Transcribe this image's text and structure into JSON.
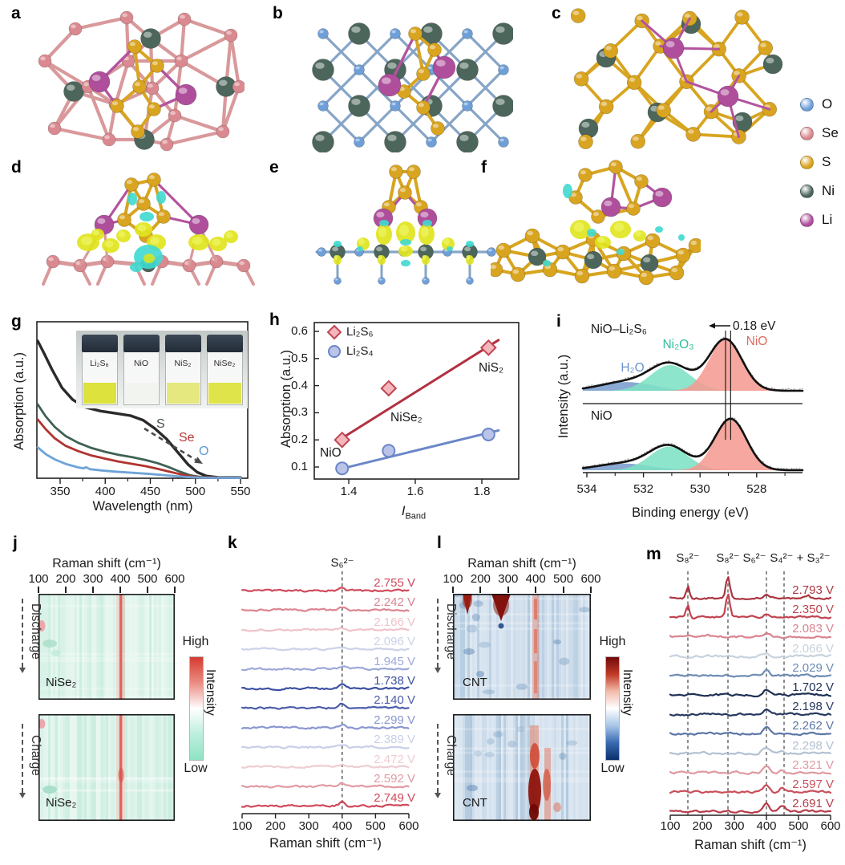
{
  "palette": {
    "O": "#6f9fd8",
    "Se": "#d9898f",
    "S": "#d9a41f",
    "Ni": "#4d665c",
    "Li": "#af4f9c",
    "charge_positive": "#dfe41c",
    "charge_negative": "#3ed9d0",
    "bond_se": "#d9999b",
    "bond_gold": "#d8a520",
    "bond_li": "#b3549f",
    "bond_nio": "#86a5c6"
  },
  "atom_legend": {
    "items": [
      {
        "label": "O",
        "color": "#6f9fd8"
      },
      {
        "label": "Se",
        "color": "#d9898f"
      },
      {
        "label": "S",
        "color": "#d9a41f"
      },
      {
        "label": "Ni",
        "color": "#4d665c"
      },
      {
        "label": "Li",
        "color": "#af4f9c"
      }
    ]
  },
  "panel_letters": {
    "a": "a",
    "b": "b",
    "c": "c",
    "d": "d",
    "e": "e",
    "f": "f",
    "g": "g",
    "h": "h",
    "i": "i",
    "j": "j",
    "k": "k",
    "l": "l",
    "m": "m"
  },
  "chart_data": {
    "g": {
      "type": "line",
      "xlabel": "Wavelength (nm)",
      "ylabel": "Absorption (a.u.)",
      "xticks": [
        "350",
        "400",
        "450",
        "500",
        "550"
      ],
      "xlim": [
        322,
        552
      ],
      "inset_vials": [
        {
          "label": "Li₂S₆",
          "liquid_color": "#dde23c"
        },
        {
          "label": "NiO",
          "liquid_color": "#f2f4f0"
        },
        {
          "label": "NiS₂",
          "liquid_color": "#e4e87e"
        },
        {
          "label": "NiSe₂",
          "liquid_color": "#dfe44a"
        }
      ],
      "trend_labels": [
        {
          "text": "S",
          "color": "#44544e"
        },
        {
          "text": "Se",
          "color": "#b9382f"
        },
        {
          "text": "O",
          "color": "#5f9bd0"
        }
      ],
      "series": [
        {
          "name": "Li₂S₆",
          "color": "#2a2a2a",
          "points": [
            [
              325,
              0.91
            ],
            [
              332,
              0.83
            ],
            [
              341,
              0.72
            ],
            [
              352,
              0.6
            ],
            [
              364,
              0.52
            ],
            [
              378,
              0.47
            ],
            [
              395,
              0.445
            ],
            [
              412,
              0.43
            ],
            [
              428,
              0.415
            ],
            [
              442,
              0.385
            ],
            [
              455,
              0.33
            ],
            [
              468,
              0.26
            ],
            [
              480,
              0.175
            ],
            [
              492,
              0.09
            ],
            [
              502,
              0.04
            ],
            [
              512,
              0.015
            ],
            [
              525,
              0.006
            ],
            [
              550,
              0.004
            ]
          ]
        },
        {
          "name": "NiS₂",
          "color": "#3e6253",
          "points": [
            [
              325,
              0.49
            ],
            [
              334,
              0.41
            ],
            [
              344,
              0.34
            ],
            [
              356,
              0.28
            ],
            [
              370,
              0.235
            ],
            [
              385,
              0.2
            ],
            [
              400,
              0.175
            ],
            [
              415,
              0.155
            ],
            [
              430,
              0.14
            ],
            [
              445,
              0.12
            ],
            [
              458,
              0.1
            ],
            [
              470,
              0.075
            ],
            [
              482,
              0.045
            ],
            [
              494,
              0.02
            ],
            [
              506,
              0.008
            ],
            [
              550,
              0.003
            ]
          ]
        },
        {
          "name": "NiSe₂",
          "color": "#b03430",
          "points": [
            [
              325,
              0.39
            ],
            [
              334,
              0.325
            ],
            [
              344,
              0.265
            ],
            [
              356,
              0.215
            ],
            [
              370,
              0.18
            ],
            [
              385,
              0.15
            ],
            [
              400,
              0.13
            ],
            [
              415,
              0.11
            ],
            [
              430,
              0.095
            ],
            [
              445,
              0.08
            ],
            [
              458,
              0.062
            ],
            [
              470,
              0.045
            ],
            [
              482,
              0.028
            ],
            [
              494,
              0.014
            ],
            [
              506,
              0.006
            ],
            [
              550,
              0.002
            ]
          ]
        },
        {
          "name": "NiO",
          "color": "#6fa3d8",
          "points": [
            [
              325,
              0.205
            ],
            [
              334,
              0.16
            ],
            [
              344,
              0.125
            ],
            [
              356,
              0.095
            ],
            [
              370,
              0.072
            ],
            [
              376,
              0.066
            ],
            [
              379,
              0.073
            ],
            [
              383,
              0.06
            ],
            [
              395,
              0.052
            ],
            [
              410,
              0.044
            ],
            [
              430,
              0.036
            ],
            [
              450,
              0.028
            ],
            [
              470,
              0.018
            ],
            [
              490,
              0.008
            ],
            [
              510,
              0.003
            ],
            [
              550,
              0.002
            ]
          ]
        }
      ]
    },
    "h": {
      "type": "scatter",
      "ylabel": "Absorption (a.u.)",
      "xlabel_main": "I",
      "xlabel_sub": "Band",
      "xticks": [
        "1.4",
        "1.6",
        "1.8"
      ],
      "yticks": [
        "0.1",
        "0.2",
        "0.3",
        "0.4",
        "0.5",
        "0.6"
      ],
      "legend": [
        {
          "label": "Li₂S₆",
          "marker": "diamond",
          "fill": "#f5b6bc",
          "stroke": "#c04553"
        },
        {
          "label": "Li₂S₄",
          "marker": "circle",
          "fill": "#b9c4e8",
          "stroke": "#6c87c8"
        }
      ],
      "series": [
        {
          "name": "Li₂S₆",
          "line_color": "#b23140",
          "points": [
            {
              "x": 1.38,
              "y": 0.2,
              "label": "NiO"
            },
            {
              "x": 1.52,
              "y": 0.39,
              "label": "NiSe₂"
            },
            {
              "x": 1.82,
              "y": 0.54,
              "label": "NiS₂"
            }
          ],
          "fit": [
            [
              1.365,
              0.195
            ],
            [
              1.85,
              0.568
            ]
          ]
        },
        {
          "name": "Li₂S₄",
          "line_color": "#6c87c8",
          "points": [
            {
              "x": 1.38,
              "y": 0.095
            },
            {
              "x": 1.52,
              "y": 0.16
            },
            {
              "x": 1.82,
              "y": 0.22
            }
          ],
          "fit": [
            [
              1.365,
              0.09
            ],
            [
              1.85,
              0.235
            ]
          ]
        }
      ]
    },
    "i": {
      "type": "area",
      "ylabel": "Intensity (a.u.)",
      "xlabel": "Binding energy (eV)",
      "xticks": [
        "534",
        "532",
        "530",
        "528"
      ],
      "shift_label": "0.18 eV",
      "subplots": [
        {
          "name": "NiO–Li₂S₆",
          "marker_ev": 529.1,
          "peaks": [
            {
              "label": "H₂O",
              "center": 532.6,
              "sigma": 0.95,
              "height": 0.17,
              "fill": "#6d93c9",
              "text_color": "#6d93c9"
            },
            {
              "label": "Ni₂O₃",
              "center": 531.05,
              "sigma": 0.7,
              "height": 0.5,
              "fill": "#7de1c4",
              "text_color": "#2fbf9a"
            },
            {
              "label": "NiO",
              "center": 529.1,
              "sigma": 0.58,
              "height": 1.0,
              "fill": "#f59b92",
              "text_color": "#dd6a5e"
            }
          ]
        },
        {
          "name": "NiO",
          "marker_ev": 528.92,
          "peaks": [
            {
              "label": "H₂O",
              "center": 532.7,
              "sigma": 0.95,
              "height": 0.13,
              "fill": "#6d93c9"
            },
            {
              "label": "Ni₂O₃",
              "center": 531.1,
              "sigma": 0.68,
              "height": 0.46,
              "fill": "#7de1c4"
            },
            {
              "label": "NiO",
              "center": 528.92,
              "sigma": 0.56,
              "height": 1.0,
              "fill": "#f59b92"
            }
          ]
        }
      ]
    },
    "j": {
      "type": "heatmap",
      "title": "Raman shift (cm⁻¹)",
      "xticks": [
        "100",
        "200",
        "300",
        "400",
        "500",
        "600"
      ],
      "hot_band_cm": 400,
      "base_color": "#d9f2e8",
      "maps": [
        {
          "phase": "Discharge",
          "sample": "NiSe₂"
        },
        {
          "phase": "Charge",
          "sample": "NiSe₂"
        }
      ],
      "colorbar": {
        "high": "High",
        "low": "Low",
        "label": "Intensity",
        "stops": [
          "#d63b30",
          "#ea8d82",
          "#ffffff",
          "#bdeedd",
          "#8fe3c4"
        ]
      }
    },
    "k": {
      "type": "line",
      "peak_label": "S₆²⁻",
      "peak_cm": 400,
      "xlabel": "Raman shift (cm⁻¹)",
      "xticks": [
        "100",
        "200",
        "300",
        "400",
        "500",
        "600"
      ],
      "traces": [
        {
          "voltage": "2.755 V",
          "color": "#d0495a",
          "peak_height": 5
        },
        {
          "voltage": "2.242 V",
          "color": "#dd8490",
          "peak_height": 4
        },
        {
          "voltage": "2.166 V",
          "color": "#efc3c9",
          "peak_height": 3
        },
        {
          "voltage": "2.096 V",
          "color": "#ccd2e9",
          "peak_height": 3
        },
        {
          "voltage": "1.945 V",
          "color": "#9ca9d8",
          "peak_height": 4
        },
        {
          "voltage": "1.738 V",
          "color": "#3c50a0",
          "peak_height": 6
        },
        {
          "voltage": "2.140 V",
          "color": "#4c5dab",
          "peak_height": 5
        },
        {
          "voltage": "2.299 V",
          "color": "#8a97d0",
          "peak_height": 4
        },
        {
          "voltage": "2.389 V",
          "color": "#c9cfe9",
          "peak_height": 3
        },
        {
          "voltage": "2.472 V",
          "color": "#eecdd3",
          "peak_height": 3
        },
        {
          "voltage": "2.592 V",
          "color": "#e29aa4",
          "peak_height": 4
        },
        {
          "voltage": "2.749 V",
          "color": "#d0495a",
          "peak_height": 5
        }
      ]
    },
    "l": {
      "type": "heatmap",
      "title": "Raman shift (cm⁻¹)",
      "xticks": [
        "100",
        "200",
        "300",
        "400",
        "500",
        "600"
      ],
      "base_color": "#cddceb",
      "maps": [
        {
          "phase": "Discharge",
          "sample": "CNT"
        },
        {
          "phase": "Charge",
          "sample": "CNT"
        }
      ],
      "colorbar": {
        "high": "High",
        "low": "Low",
        "label": "Intensity",
        "stops": [
          "#70090a",
          "#c23a28",
          "#f2bcab",
          "#ffffff",
          "#a9c6e8",
          "#3a6ab2",
          "#0b2f6b"
        ]
      }
    },
    "m": {
      "type": "line",
      "xlabel": "Raman shift (cm⁻¹)",
      "xticks": [
        "100",
        "200",
        "300",
        "400",
        "500",
        "600"
      ],
      "peak_labels": [
        {
          "text": "S₈²⁻",
          "cm": 155
        },
        {
          "text": "S₈²⁻",
          "cm": 280
        },
        {
          "text": "S₆²⁻",
          "cm": 400
        },
        {
          "text": "S₄²⁻ + S₃²⁻",
          "cm": 455
        }
      ],
      "traces": [
        {
          "voltage": "2.793 V",
          "color": "#ab3540",
          "peaks": [
            [
              155,
              15,
              5
            ],
            [
              280,
              27,
              6
            ],
            [
              400,
              3,
              9
            ],
            [
              528,
              3,
              6
            ]
          ]
        },
        {
          "voltage": "2.350 V",
          "color": "#c24350",
          "peaks": [
            [
              155,
              16,
              5
            ],
            [
              280,
              30,
              6
            ],
            [
              400,
              4,
              9
            ]
          ]
        },
        {
          "voltage": "2.083 V",
          "color": "#d9848e",
          "peaks": [
            [
              215,
              2,
              8
            ],
            [
              400,
              5,
              10
            ]
          ]
        },
        {
          "voltage": "2.066 V",
          "color": "#c7d2dd",
          "peaks": [
            [
              400,
              4,
              10
            ]
          ]
        },
        {
          "voltage": "2.029 V",
          "color": "#6d8cb3",
          "peaks": [
            [
              400,
              6,
              9
            ]
          ]
        },
        {
          "voltage": "1.702 V",
          "color": "#1f3055",
          "peaks": [
            [
              165,
              2,
              7
            ],
            [
              400,
              7,
              9
            ]
          ]
        },
        {
          "voltage": "2.198 V",
          "color": "#27395f",
          "peaks": [
            [
              400,
              6,
              12
            ],
            [
              560,
              2,
              8
            ]
          ]
        },
        {
          "voltage": "2.262 V",
          "color": "#5a76a6",
          "peaks": [
            [
              400,
              7,
              10
            ]
          ]
        },
        {
          "voltage": "2.298 V",
          "color": "#b3c0d2",
          "peaks": [
            [
              400,
              7,
              12
            ],
            [
              450,
              2,
              8
            ]
          ]
        },
        {
          "voltage": "2.321 V",
          "color": "#df99a1",
          "peaks": [
            [
              400,
              9,
              10
            ],
            [
              450,
              4,
              8
            ]
          ]
        },
        {
          "voltage": "2.597 V",
          "color": "#c94f5c",
          "peaks": [
            [
              400,
              10,
              9
            ],
            [
              450,
              6,
              8
            ],
            [
              540,
              2,
              8
            ]
          ]
        },
        {
          "voltage": "2.691 V",
          "color": "#b83c49",
          "peaks": [
            [
              400,
              11,
              9
            ],
            [
              450,
              7,
              8
            ]
          ]
        }
      ]
    }
  }
}
